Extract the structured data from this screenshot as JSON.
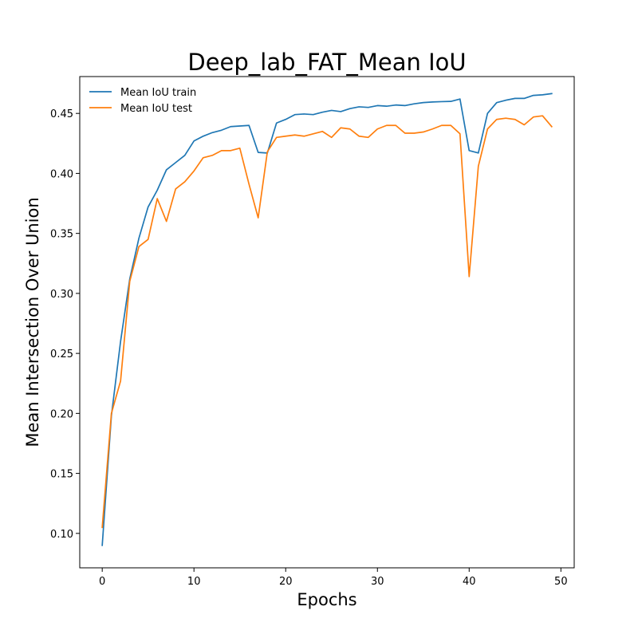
{
  "chart_data": {
    "type": "line",
    "title": "Deep_lab_FAT_Mean IoU",
    "xlabel": "Epochs",
    "ylabel": "Mean Intersection Over Union",
    "xlim": [
      -2.45,
      51.45
    ],
    "ylim": [
      0.0713,
      0.4807
    ],
    "x_ticks": [
      0,
      10,
      20,
      30,
      40,
      50
    ],
    "x_tick_labels": [
      "0",
      "10",
      "20",
      "30",
      "40",
      "50"
    ],
    "y_ticks": [
      0.1,
      0.15,
      0.2,
      0.25,
      0.3,
      0.35,
      0.4,
      0.45
    ],
    "y_tick_labels": [
      "0.10",
      "0.15",
      "0.20",
      "0.25",
      "0.30",
      "0.35",
      "0.40",
      "0.45"
    ],
    "grid": false,
    "legend": {
      "placement": "top-left"
    },
    "x": [
      0,
      1,
      2,
      3,
      4,
      5,
      6,
      7,
      8,
      9,
      10,
      11,
      12,
      13,
      14,
      15,
      16,
      17,
      18,
      19,
      20,
      21,
      22,
      23,
      24,
      25,
      26,
      27,
      28,
      29,
      30,
      31,
      32,
      33,
      34,
      35,
      36,
      37,
      38,
      39,
      40,
      41,
      42,
      43,
      44,
      45,
      46,
      47,
      48,
      49
    ],
    "series": [
      {
        "name": "Mean IoU train",
        "color": "#1f77b4",
        "values": [
          0.09,
          0.198,
          0.26,
          0.312,
          0.346,
          0.372,
          0.386,
          0.403,
          0.409,
          0.415,
          0.427,
          0.431,
          0.434,
          0.436,
          0.439,
          0.4395,
          0.44,
          0.4175,
          0.417,
          0.442,
          0.445,
          0.449,
          0.4495,
          0.449,
          0.451,
          0.4525,
          0.4515,
          0.454,
          0.4555,
          0.455,
          0.4565,
          0.456,
          0.457,
          0.4565,
          0.458,
          0.459,
          0.4595,
          0.4598,
          0.46,
          0.462,
          0.419,
          0.417,
          0.45,
          0.459,
          0.461,
          0.4625,
          0.4625,
          0.465,
          0.4655,
          0.4665
        ]
      },
      {
        "name": "Mean IoU test",
        "color": "#ff7f0e",
        "values": [
          0.105,
          0.2,
          0.227,
          0.31,
          0.339,
          0.345,
          0.379,
          0.36,
          0.387,
          0.393,
          0.402,
          0.413,
          0.415,
          0.419,
          0.419,
          0.421,
          0.391,
          0.363,
          0.418,
          0.43,
          0.431,
          0.432,
          0.431,
          0.433,
          0.435,
          0.43,
          0.438,
          0.437,
          0.431,
          0.43,
          0.437,
          0.44,
          0.44,
          0.4335,
          0.4335,
          0.4345,
          0.437,
          0.44,
          0.44,
          0.433,
          0.314,
          0.406,
          0.437,
          0.445,
          0.446,
          0.445,
          0.4405,
          0.447,
          0.448,
          0.439
        ]
      }
    ]
  }
}
